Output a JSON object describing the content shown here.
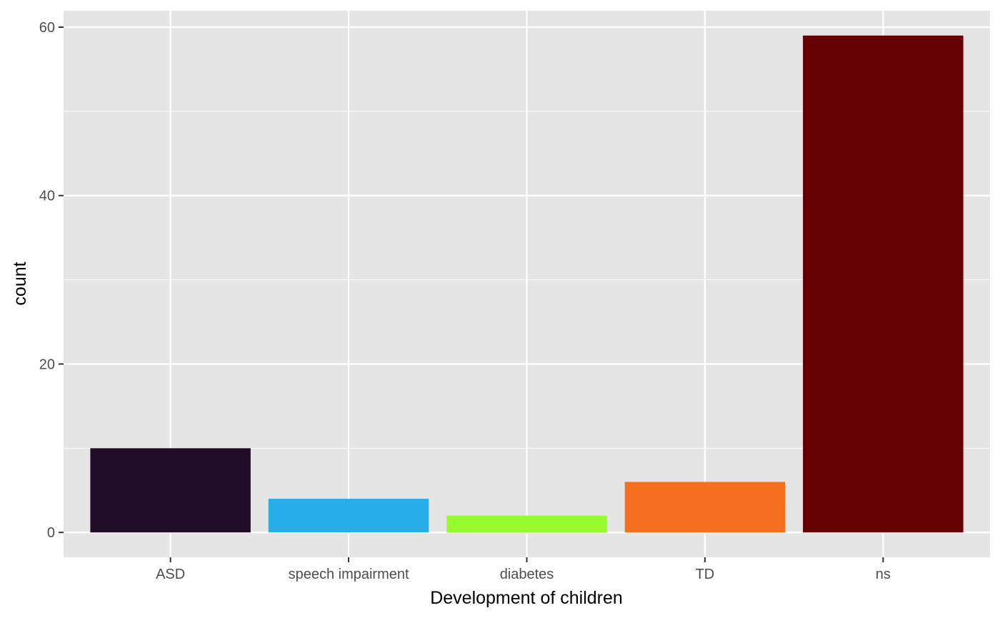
{
  "chart_data": {
    "type": "bar",
    "title": "",
    "xlabel": "Development of children",
    "ylabel": "count",
    "categories": [
      "ASD",
      "speech impairment",
      "diabetes",
      "TD",
      "ns"
    ],
    "values": [
      10,
      4,
      2,
      6,
      59
    ],
    "colors": [
      "#220D28",
      "#28AEE8",
      "#97FC2E",
      "#F66F1F",
      "#650002"
    ],
    "ylim": [
      -2.95,
      61.95
    ],
    "yticks": [
      0,
      20,
      40,
      60
    ],
    "yticks_minor": [
      10,
      30,
      50
    ],
    "grid": true,
    "legend": "none",
    "panel_background": "#E5E5E5",
    "grid_color": "#FFFFFF"
  }
}
